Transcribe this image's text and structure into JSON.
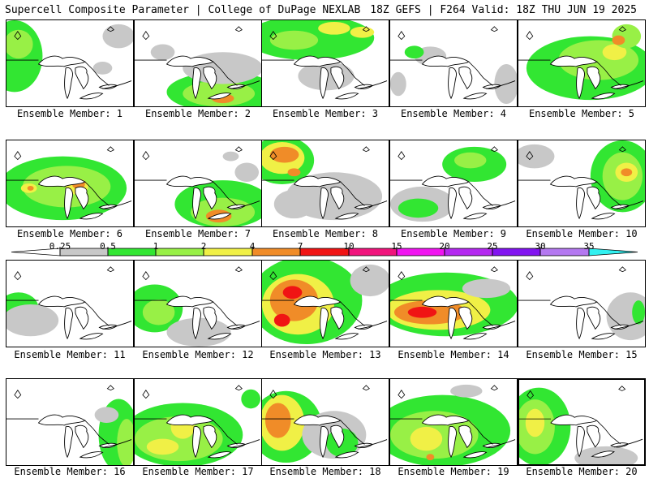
{
  "header": {
    "left": "Supercell Composite Parameter | College of DuPage NEXLAB",
    "right": "18Z GEFS | F264 Valid: 18Z THU JUN 19 2025"
  },
  "legend": {
    "labels": [
      "0.25",
      "0.5",
      "1",
      "2",
      "4",
      "7",
      "10",
      "15",
      "20",
      "25",
      "30",
      "35"
    ],
    "colors": [
      "#ffffff",
      "#c8c8c8",
      "#32e632",
      "#98f046",
      "#f0f046",
      "#f08c28",
      "#f01414",
      "#f0147c",
      "#f014f0",
      "#b428f0",
      "#8214f0",
      "#b478f0",
      "#32f0f0"
    ]
  },
  "members": [
    {
      "caption": "Ensemble Member: 1",
      "selected": false,
      "blobs": [
        {
          "x": 10,
          "y": 45,
          "rx": 35,
          "ry": 45,
          "c": "green"
        },
        {
          "x": 15,
          "y": 30,
          "rx": 18,
          "ry": 18,
          "c": "lgreen"
        },
        {
          "x": 140,
          "y": 20,
          "rx": 20,
          "ry": 15,
          "c": "gray"
        },
        {
          "x": 120,
          "y": 60,
          "rx": 12,
          "ry": 8,
          "c": "gray"
        }
      ]
    },
    {
      "caption": "Ensemble Member: 2",
      "selected": false,
      "blobs": [
        {
          "x": 110,
          "y": 90,
          "rx": 70,
          "ry": 25,
          "c": "green"
        },
        {
          "x": 105,
          "y": 92,
          "rx": 45,
          "ry": 16,
          "c": "lgreen"
        },
        {
          "x": 110,
          "y": 98,
          "rx": 14,
          "ry": 6,
          "c": "orange"
        },
        {
          "x": 110,
          "y": 60,
          "rx": 50,
          "ry": 20,
          "c": "gray"
        },
        {
          "x": 35,
          "y": 40,
          "rx": 15,
          "ry": 10,
          "c": "gray"
        }
      ]
    },
    {
      "caption": "Ensemble Member: 3",
      "selected": false,
      "blobs": [
        {
          "x": 60,
          "y": 22,
          "rx": 80,
          "ry": 28,
          "c": "green"
        },
        {
          "x": 40,
          "y": 25,
          "rx": 30,
          "ry": 12,
          "c": "lgreen"
        },
        {
          "x": 90,
          "y": 10,
          "rx": 20,
          "ry": 8,
          "c": "yellow"
        },
        {
          "x": 125,
          "y": 15,
          "rx": 15,
          "ry": 7,
          "c": "yellow"
        },
        {
          "x": 80,
          "y": 70,
          "rx": 35,
          "ry": 18,
          "c": "gray"
        }
      ]
    },
    {
      "caption": "Ensemble Member: 4",
      "selected": false,
      "blobs": [
        {
          "x": 50,
          "y": 45,
          "rx": 20,
          "ry": 12,
          "c": "gray"
        },
        {
          "x": 30,
          "y": 40,
          "rx": 12,
          "ry": 8,
          "c": "green"
        },
        {
          "x": 145,
          "y": 80,
          "rx": 15,
          "ry": 25,
          "c": "gray"
        },
        {
          "x": 10,
          "y": 80,
          "rx": 10,
          "ry": 15,
          "c": "gray"
        }
      ]
    },
    {
      "caption": "Ensemble Member: 5",
      "selected": false,
      "blobs": [
        {
          "x": 90,
          "y": 60,
          "rx": 80,
          "ry": 40,
          "c": "green"
        },
        {
          "x": 100,
          "y": 50,
          "rx": 50,
          "ry": 25,
          "c": "lgreen"
        },
        {
          "x": 120,
          "y": 40,
          "rx": 15,
          "ry": 10,
          "c": "yellow"
        },
        {
          "x": 135,
          "y": 20,
          "rx": 18,
          "ry": 15,
          "c": "lgreen"
        },
        {
          "x": 125,
          "y": 25,
          "rx": 8,
          "ry": 6,
          "c": "orange"
        }
      ]
    },
    {
      "caption": "Ensemble Member: 6",
      "selected": false,
      "blobs": [
        {
          "x": 70,
          "y": 60,
          "rx": 80,
          "ry": 40,
          "c": "green"
        },
        {
          "x": 75,
          "y": 58,
          "rx": 55,
          "ry": 26,
          "c": "lgreen"
        },
        {
          "x": 88,
          "y": 58,
          "rx": 14,
          "ry": 10,
          "c": "yellow"
        },
        {
          "x": 90,
          "y": 55,
          "rx": 8,
          "ry": 6,
          "c": "orange"
        },
        {
          "x": 28,
          "y": 60,
          "rx": 10,
          "ry": 6,
          "c": "yellow"
        },
        {
          "x": 30,
          "y": 60,
          "rx": 4,
          "ry": 3,
          "c": "orange"
        }
      ]
    },
    {
      "caption": "Ensemble Member: 7",
      "selected": false,
      "blobs": [
        {
          "x": 110,
          "y": 80,
          "rx": 60,
          "ry": 30,
          "c": "green"
        },
        {
          "x": 110,
          "y": 90,
          "rx": 40,
          "ry": 18,
          "c": "lgreen"
        },
        {
          "x": 105,
          "y": 95,
          "rx": 16,
          "ry": 8,
          "c": "orange"
        },
        {
          "x": 140,
          "y": 40,
          "rx": 15,
          "ry": 12,
          "c": "gray"
        },
        {
          "x": 120,
          "y": 20,
          "rx": 10,
          "ry": 6,
          "c": "gray"
        }
      ]
    },
    {
      "caption": "Ensemble Member: 8",
      "selected": false,
      "blobs": [
        {
          "x": 25,
          "y": 25,
          "rx": 40,
          "ry": 30,
          "c": "green"
        },
        {
          "x": 25,
          "y": 22,
          "rx": 28,
          "ry": 20,
          "c": "yellow"
        },
        {
          "x": 28,
          "y": 18,
          "rx": 18,
          "ry": 10,
          "c": "orange"
        },
        {
          "x": 40,
          "y": 40,
          "rx": 8,
          "ry": 5,
          "c": "orange"
        },
        {
          "x": 90,
          "y": 70,
          "rx": 60,
          "ry": 30,
          "c": "gray"
        },
        {
          "x": 40,
          "y": 80,
          "rx": 25,
          "ry": 18,
          "c": "gray"
        }
      ]
    },
    {
      "caption": "Ensemble Member: 9",
      "selected": false,
      "blobs": [
        {
          "x": 105,
          "y": 30,
          "rx": 40,
          "ry": 22,
          "c": "green"
        },
        {
          "x": 100,
          "y": 25,
          "rx": 20,
          "ry": 10,
          "c": "lgreen"
        },
        {
          "x": 40,
          "y": 80,
          "rx": 40,
          "ry": 22,
          "c": "gray"
        },
        {
          "x": 35,
          "y": 85,
          "rx": 25,
          "ry": 12,
          "c": "green"
        }
      ]
    },
    {
      "caption": "Ensemble Member: 10",
      "selected": false,
      "blobs": [
        {
          "x": 130,
          "y": 45,
          "rx": 40,
          "ry": 45,
          "c": "green"
        },
        {
          "x": 130,
          "y": 45,
          "rx": 25,
          "ry": 30,
          "c": "lgreen"
        },
        {
          "x": 135,
          "y": 40,
          "rx": 14,
          "ry": 12,
          "c": "yellow"
        },
        {
          "x": 135,
          "y": 40,
          "rx": 7,
          "ry": 5,
          "c": "orange"
        },
        {
          "x": 20,
          "y": 20,
          "rx": 25,
          "ry": 15,
          "c": "gray"
        }
      ]
    },
    {
      "caption": "Ensemble Member: 11",
      "selected": false,
      "blobs": [
        {
          "x": 15,
          "y": 60,
          "rx": 25,
          "ry": 20,
          "c": "green"
        },
        {
          "x": 30,
          "y": 75,
          "rx": 35,
          "ry": 20,
          "c": "gray"
        }
      ]
    },
    {
      "caption": "Ensemble Member: 12",
      "selected": false,
      "blobs": [
        {
          "x": 25,
          "y": 60,
          "rx": 35,
          "ry": 30,
          "c": "green"
        },
        {
          "x": 30,
          "y": 65,
          "rx": 20,
          "ry": 16,
          "c": "lgreen"
        },
        {
          "x": 80,
          "y": 90,
          "rx": 40,
          "ry": 18,
          "c": "gray"
        }
      ]
    },
    {
      "caption": "Ensemble Member: 13",
      "selected": false,
      "blobs": [
        {
          "x": 55,
          "y": 50,
          "rx": 70,
          "ry": 55,
          "c": "green"
        },
        {
          "x": 45,
          "y": 55,
          "rx": 45,
          "ry": 38,
          "c": "yellow"
        },
        {
          "x": 40,
          "y": 50,
          "rx": 30,
          "ry": 26,
          "c": "orange"
        },
        {
          "x": 38,
          "y": 40,
          "rx": 12,
          "ry": 8,
          "c": "red"
        },
        {
          "x": 25,
          "y": 75,
          "rx": 10,
          "ry": 8,
          "c": "red"
        },
        {
          "x": 135,
          "y": 25,
          "rx": 25,
          "ry": 20,
          "c": "gray"
        }
      ]
    },
    {
      "caption": "Ensemble Member: 14",
      "selected": false,
      "blobs": [
        {
          "x": 70,
          "y": 55,
          "rx": 90,
          "ry": 40,
          "c": "green"
        },
        {
          "x": 60,
          "y": 62,
          "rx": 65,
          "ry": 25,
          "c": "yellow"
        },
        {
          "x": 50,
          "y": 65,
          "rx": 45,
          "ry": 15,
          "c": "orange"
        },
        {
          "x": 40,
          "y": 65,
          "rx": 18,
          "ry": 7,
          "c": "red"
        },
        {
          "x": 120,
          "y": 35,
          "rx": 30,
          "ry": 12,
          "c": "gray"
        }
      ]
    },
    {
      "caption": "Ensemble Member: 15",
      "selected": false,
      "blobs": [
        {
          "x": 140,
          "y": 70,
          "rx": 30,
          "ry": 30,
          "c": "gray"
        },
        {
          "x": 150,
          "y": 65,
          "rx": 8,
          "ry": 15,
          "c": "green"
        }
      ]
    },
    {
      "caption": "Ensemble Member: 16",
      "selected": false,
      "blobs": [
        {
          "x": 140,
          "y": 70,
          "rx": 25,
          "ry": 45,
          "c": "green"
        },
        {
          "x": 150,
          "y": 80,
          "rx": 12,
          "ry": 30,
          "c": "lgreen"
        },
        {
          "x": 125,
          "y": 45,
          "rx": 15,
          "ry": 10,
          "c": "gray"
        }
      ]
    },
    {
      "caption": "Ensemble Member: 17",
      "selected": false,
      "blobs": [
        {
          "x": 60,
          "y": 70,
          "rx": 75,
          "ry": 40,
          "c": "green"
        },
        {
          "x": 55,
          "y": 75,
          "rx": 55,
          "ry": 28,
          "c": "lgreen"
        },
        {
          "x": 60,
          "y": 60,
          "rx": 15,
          "ry": 15,
          "c": "yellow"
        },
        {
          "x": 35,
          "y": 85,
          "rx": 20,
          "ry": 10,
          "c": "yellow"
        },
        {
          "x": 145,
          "y": 25,
          "rx": 12,
          "ry": 12,
          "c": "green"
        }
      ]
    },
    {
      "caption": "Ensemble Member: 18",
      "selected": false,
      "blobs": [
        {
          "x": 30,
          "y": 60,
          "rx": 45,
          "ry": 45,
          "c": "green"
        },
        {
          "x": 25,
          "y": 55,
          "rx": 28,
          "ry": 35,
          "c": "yellow"
        },
        {
          "x": 20,
          "y": 52,
          "rx": 16,
          "ry": 22,
          "c": "orange"
        },
        {
          "x": 90,
          "y": 70,
          "rx": 40,
          "ry": 30,
          "c": "gray"
        },
        {
          "x": 100,
          "y": 80,
          "rx": 20,
          "ry": 18,
          "c": "green"
        }
      ]
    },
    {
      "caption": "Ensemble Member: 19",
      "selected": false,
      "blobs": [
        {
          "x": 65,
          "y": 65,
          "rx": 85,
          "ry": 45,
          "c": "green"
        },
        {
          "x": 55,
          "y": 70,
          "rx": 55,
          "ry": 30,
          "c": "lgreen"
        },
        {
          "x": 45,
          "y": 75,
          "rx": 20,
          "ry": 15,
          "c": "yellow"
        },
        {
          "x": 50,
          "y": 98,
          "rx": 5,
          "ry": 4,
          "c": "orange"
        },
        {
          "x": 95,
          "y": 15,
          "rx": 20,
          "ry": 8,
          "c": "gray"
        }
      ]
    },
    {
      "caption": "Ensemble Member: 20",
      "selected": true,
      "blobs": [
        {
          "x": 25,
          "y": 60,
          "rx": 40,
          "ry": 50,
          "c": "green"
        },
        {
          "x": 20,
          "y": 60,
          "rx": 25,
          "ry": 35,
          "c": "lgreen"
        },
        {
          "x": 20,
          "y": 55,
          "rx": 12,
          "ry": 18,
          "c": "yellow"
        },
        {
          "x": 110,
          "y": 100,
          "rx": 40,
          "ry": 15,
          "c": "gray"
        }
      ]
    }
  ]
}
